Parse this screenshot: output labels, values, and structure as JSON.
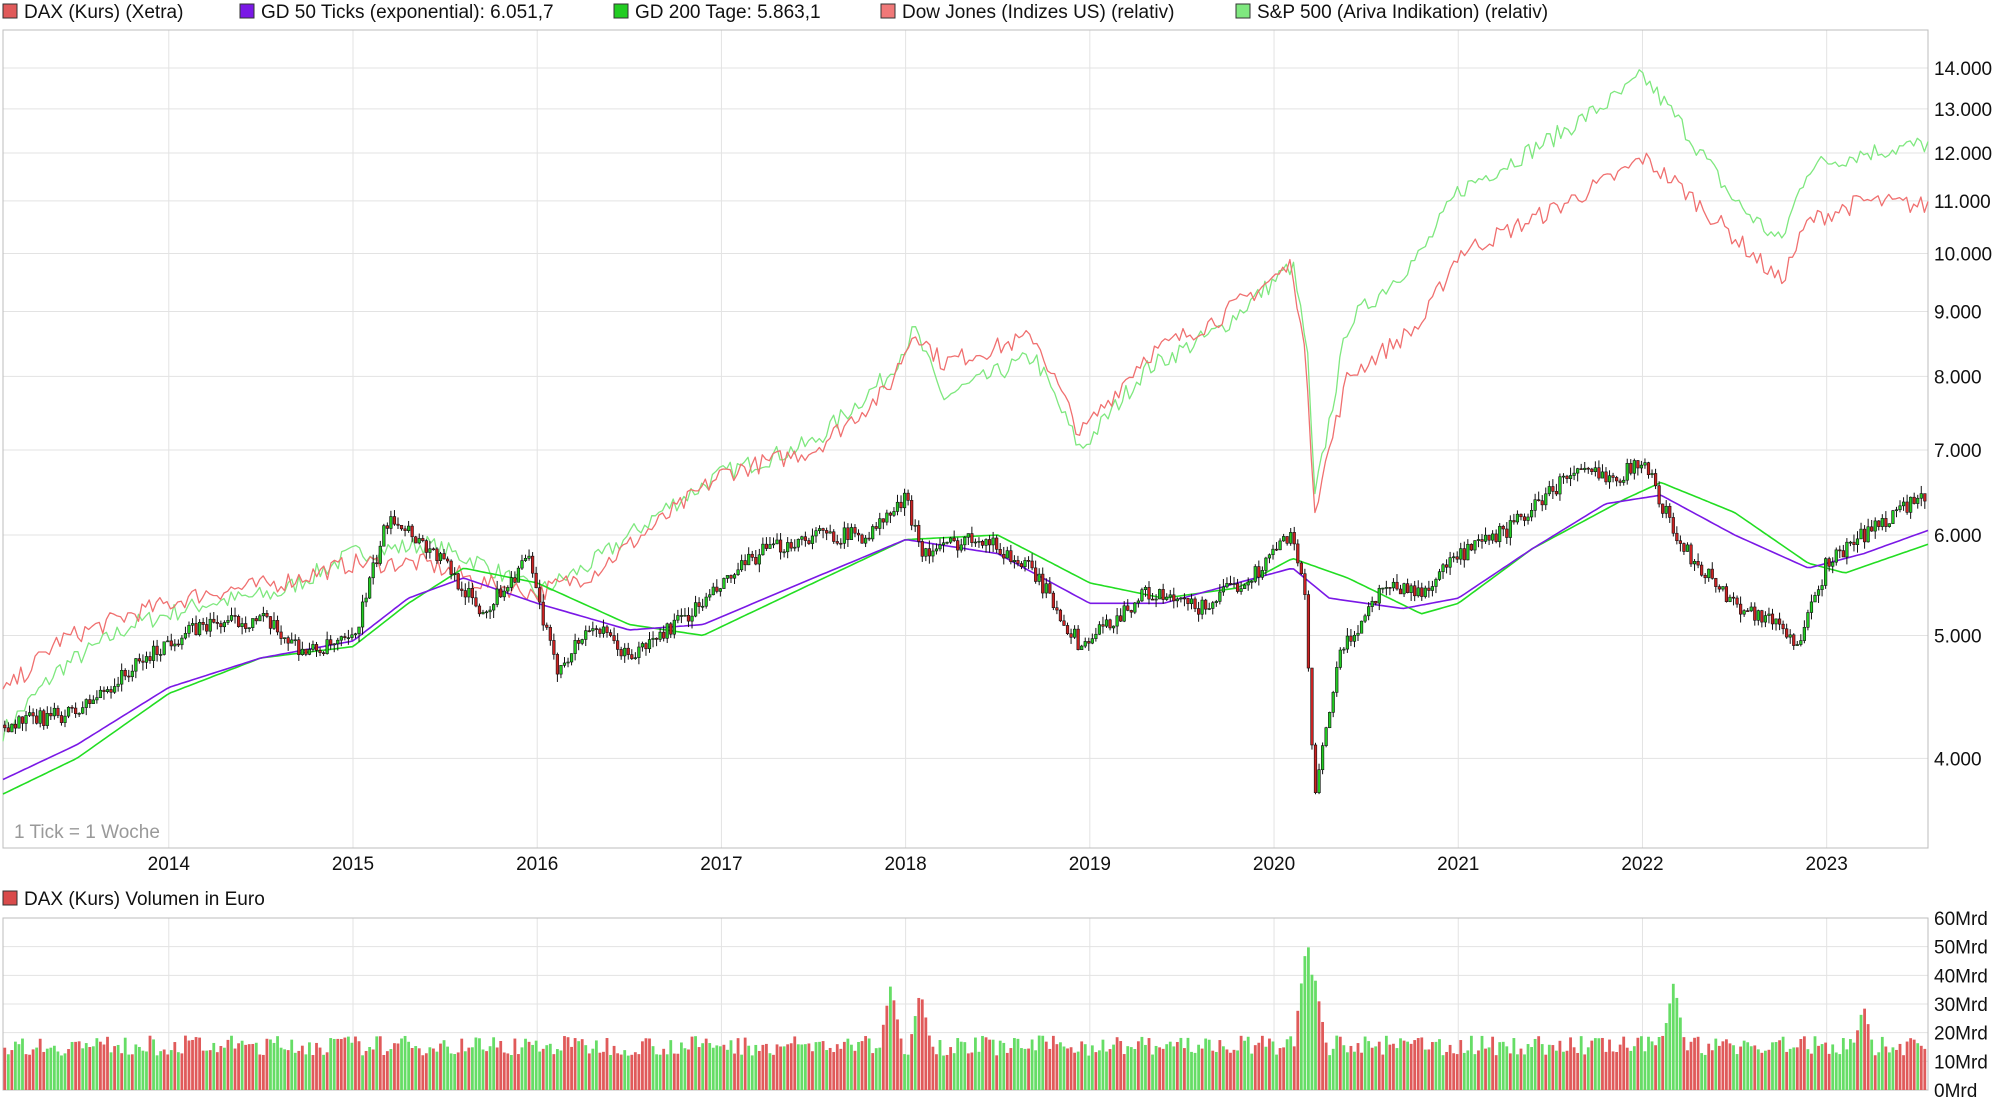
{
  "legend": [
    {
      "label": "DAX (Kurs) (Xetra)",
      "color": "#e05a5a"
    },
    {
      "label": "GD 50 Ticks (exponential): 6.051,7",
      "color": "#7a18e6"
    },
    {
      "label": "GD 200 Tage: 5.863,1",
      "color": "#22cc22"
    },
    {
      "label": "Dow Jones (Indizes US) (relativ)",
      "color": "#f07878"
    },
    {
      "label": "S&P 500 (Ariva Indikation) (relativ)",
      "color": "#7fe87f"
    }
  ],
  "volume_legend": {
    "label": "DAX (Kurs) Volumen in Euro",
    "color": "#d94b4b"
  },
  "tick_note": "1 Tick = 1 Woche",
  "colors": {
    "up": "#22cc22",
    "down": "#cc2222",
    "ema50": "#7a18e6",
    "sma200": "#22dd22",
    "dow": "#f07070",
    "sp500": "#7fe87f",
    "vol_up": "#66dd66",
    "vol_down": "#e05a5a",
    "grid": "#e3e3e3"
  },
  "chart_data": [
    {
      "type": "line",
      "title": "",
      "x_ticks": [
        "2014",
        "2015",
        "2016",
        "2017",
        "2018",
        "2019",
        "2020",
        "2021",
        "2022",
        "2023"
      ],
      "x_range": [
        2013.1,
        2023.55
      ],
      "y_scale": "log",
      "y_ticks": [
        "4.000",
        "5.000",
        "6.000",
        "7.000",
        "8.000",
        "9.000",
        "10.000",
        "11.000",
        "12.000",
        "13.000",
        "14.000"
      ],
      "y_tick_values": [
        4000,
        5000,
        6000,
        7000,
        8000,
        9000,
        10000,
        11000,
        12000,
        13000,
        14000
      ],
      "series": [
        {
          "name": "DAX (Kurs) (Xetra)",
          "kind": "candlestick",
          "x": [
            2013.1,
            2013.5,
            2014.0,
            2014.2,
            2014.5,
            2014.75,
            2015.0,
            2015.2,
            2015.5,
            2015.7,
            2015.95,
            2016.1,
            2016.3,
            2016.5,
            2016.9,
            2017.2,
            2017.5,
            2017.8,
            2018.0,
            2018.1,
            2018.4,
            2018.7,
            2018.95,
            2019.3,
            2019.6,
            2019.9,
            2020.1,
            2020.17,
            2020.22,
            2020.35,
            2020.6,
            2020.8,
            2020.95,
            2021.3,
            2021.6,
            2021.9,
            2022.0,
            2022.2,
            2022.5,
            2022.75,
            2022.85,
            2023.0,
            2023.2,
            2023.4,
            2023.55
          ],
          "y": [
            4250,
            4350,
            4950,
            5100,
            5150,
            4850,
            4950,
            6250,
            5700,
            5200,
            5750,
            4700,
            5100,
            4800,
            5300,
            5800,
            6000,
            6000,
            6400,
            5800,
            6000,
            5600,
            4900,
            5400,
            5250,
            5600,
            6050,
            5300,
            3700,
            4800,
            5500,
            5400,
            5700,
            6100,
            6700,
            6700,
            6900,
            5900,
            5300,
            5100,
            4900,
            5700,
            6000,
            6300,
            6400
          ]
        },
        {
          "name": "GD 50 Ticks (exponential): 6.051,7",
          "x": [
            2013.1,
            2013.5,
            2014.0,
            2014.5,
            2015.0,
            2015.3,
            2015.6,
            2016.0,
            2016.5,
            2016.9,
            2017.5,
            2018.0,
            2018.5,
            2019.0,
            2019.4,
            2019.8,
            2020.1,
            2020.3,
            2020.7,
            2021.0,
            2021.4,
            2021.8,
            2022.1,
            2022.5,
            2022.9,
            2023.2,
            2023.55
          ],
          "y": [
            3850,
            4100,
            4550,
            4800,
            4950,
            5350,
            5550,
            5300,
            5050,
            5100,
            5550,
            5950,
            5800,
            5300,
            5300,
            5500,
            5650,
            5350,
            5250,
            5350,
            5850,
            6350,
            6450,
            6000,
            5650,
            5800,
            6050
          ]
        },
        {
          "name": "GD 200 Tage: 5.863,1",
          "x": [
            2013.1,
            2013.5,
            2014.0,
            2014.5,
            2015.0,
            2015.3,
            2015.6,
            2016.0,
            2016.5,
            2016.9,
            2017.5,
            2018.0,
            2018.5,
            2019.0,
            2019.4,
            2019.8,
            2020.1,
            2020.4,
            2020.8,
            2021.0,
            2021.4,
            2021.9,
            2022.1,
            2022.5,
            2022.9,
            2023.1,
            2023.55
          ],
          "y": [
            3750,
            4000,
            4500,
            4800,
            4900,
            5300,
            5650,
            5500,
            5100,
            5000,
            5500,
            5950,
            6000,
            5500,
            5350,
            5450,
            5750,
            5550,
            5200,
            5300,
            5850,
            6400,
            6600,
            6250,
            5700,
            5600,
            5900
          ]
        },
        {
          "name": "Dow Jones (Indizes US) (relativ)",
          "x": [
            2013.1,
            2013.4,
            2013.8,
            2014.2,
            2014.6,
            2015.0,
            2015.4,
            2015.7,
            2016.0,
            2016.3,
            2016.7,
            2017.0,
            2017.5,
            2017.9,
            2018.05,
            2018.2,
            2018.7,
            2018.95,
            2019.3,
            2019.7,
            2020.1,
            2020.18,
            2020.22,
            2020.4,
            2020.8,
            2021.0,
            2021.5,
            2021.9,
            2022.0,
            2022.2,
            2022.5,
            2022.75,
            2022.9,
            2023.2,
            2023.55
          ],
          "y": [
            4500,
            4950,
            5200,
            5400,
            5500,
            5700,
            5700,
            5500,
            5400,
            5600,
            6200,
            6700,
            7000,
            7800,
            8700,
            8200,
            8600,
            7200,
            8300,
            8900,
            9800,
            8000,
            6300,
            8000,
            8800,
            10000,
            10800,
            11600,
            11900,
            11300,
            10300,
            9500,
            10600,
            11000,
            10900
          ]
        },
        {
          "name": "S&P 500 (Ariva Indikation) (relativ)",
          "x": [
            2013.1,
            2013.4,
            2013.8,
            2014.2,
            2014.6,
            2015.0,
            2015.4,
            2015.7,
            2016.0,
            2016.3,
            2016.7,
            2017.0,
            2017.5,
            2017.9,
            2018.05,
            2018.2,
            2018.7,
            2018.95,
            2019.3,
            2019.7,
            2020.1,
            2020.18,
            2020.22,
            2020.4,
            2020.8,
            2021.0,
            2021.5,
            2021.9,
            2022.0,
            2022.2,
            2022.5,
            2022.75,
            2022.9,
            2023.2,
            2023.55
          ],
          "y": [
            4200,
            4700,
            5100,
            5300,
            5400,
            5800,
            5900,
            5700,
            5400,
            5700,
            6300,
            6700,
            7100,
            8000,
            8700,
            7700,
            8300,
            7000,
            8100,
            8700,
            9800,
            8400,
            6400,
            8800,
            10000,
            11200,
            12300,
            13400,
            13800,
            12700,
            11000,
            10200,
            11700,
            12000,
            12200
          ]
        }
      ]
    },
    {
      "type": "bar",
      "title": "DAX (Kurs) Volumen in Euro",
      "y_ticks": [
        "0Mrd",
        "10Mrd",
        "20Mrd",
        "30Mrd",
        "40Mrd",
        "50Mrd",
        "60Mrd"
      ],
      "y_tick_values": [
        0,
        10,
        20,
        30,
        40,
        50,
        60
      ],
      "ylim": [
        0,
        60
      ],
      "unit": "Mrd",
      "x_range": [
        2013.1,
        2023.55
      ],
      "peaks": [
        {
          "x": 2017.92,
          "value": 37
        },
        {
          "x": 2018.08,
          "value": 35
        },
        {
          "x": 2020.18,
          "value": 53
        },
        {
          "x": 2020.22,
          "value": 40
        },
        {
          "x": 2022.17,
          "value": 38
        },
        {
          "x": 2023.2,
          "value": 30
        }
      ]
    }
  ]
}
